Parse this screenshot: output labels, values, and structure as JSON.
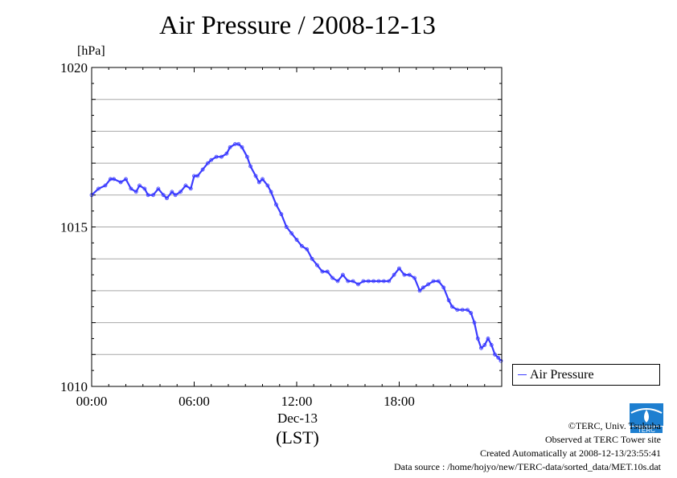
{
  "title": "Air Pressure / 2008-12-13",
  "unit_label": "[hPa]",
  "x_caption_date": "Dec-13",
  "x_caption_zone": "(LST)",
  "legend_label": "Air Pressure",
  "credits": {
    "copyright": "©TERC, Univ. Tsukuba",
    "site": "Observed at TERC Tower site",
    "created": "Created Automatically at 2008-12-13/23:55:41",
    "source": "Data source : /home/hojyo/new/TERC-data/sorted_data/MET.10s.dat"
  },
  "logo_text": "TERC",
  "colors": {
    "series": "#3b3bff",
    "grid": "#a8a8a8",
    "logo": "#1e7fd0"
  },
  "chart_data": {
    "type": "line",
    "title": "Air Pressure / 2008-12-13",
    "ylabel": "[hPa]",
    "xlabel": "Dec-13 (LST)",
    "xlim": [
      0,
      24
    ],
    "ylim": [
      1010,
      1020
    ],
    "xticks": [
      0,
      6,
      12,
      18
    ],
    "xticklabels": [
      "00:00",
      "06:00",
      "12:00",
      "18:00"
    ],
    "yticks": [
      1010,
      1015,
      1020
    ],
    "yticklabels": [
      "1010",
      "1015",
      "1020"
    ],
    "grid": true,
    "legend": "right",
    "series": [
      {
        "name": "Air Pressure",
        "x": [
          0,
          0.4,
          0.8,
          1.1,
          1.3,
          1.7,
          2.0,
          2.3,
          2.6,
          2.8,
          3.1,
          3.3,
          3.6,
          3.9,
          4.2,
          4.4,
          4.7,
          4.9,
          5.2,
          5.5,
          5.8,
          6.0,
          6.2,
          6.5,
          6.8,
          7.0,
          7.3,
          7.6,
          7.9,
          8.1,
          8.4,
          8.6,
          8.8,
          9.1,
          9.3,
          9.6,
          9.8,
          10.0,
          10.3,
          10.5,
          10.8,
          11.1,
          11.4,
          11.7,
          12.0,
          12.3,
          12.6,
          12.9,
          13.2,
          13.5,
          13.8,
          14.1,
          14.4,
          14.7,
          15.0,
          15.3,
          15.6,
          15.9,
          16.2,
          16.5,
          16.8,
          17.1,
          17.4,
          17.7,
          18.0,
          18.3,
          18.6,
          18.9,
          19.2,
          19.4,
          19.7,
          20.0,
          20.3,
          20.6,
          20.9,
          21.1,
          21.4,
          21.7,
          22.0,
          22.2,
          22.4,
          22.6,
          22.8,
          23.0,
          23.2,
          23.4,
          23.6,
          23.8,
          23.95
        ],
        "values": [
          1016.0,
          1016.2,
          1016.3,
          1016.5,
          1016.5,
          1016.4,
          1016.5,
          1016.2,
          1016.1,
          1016.3,
          1016.2,
          1016.0,
          1016.0,
          1016.2,
          1016.0,
          1015.9,
          1016.1,
          1016.0,
          1016.1,
          1016.3,
          1016.2,
          1016.6,
          1016.6,
          1016.8,
          1017.0,
          1017.1,
          1017.2,
          1017.2,
          1017.3,
          1017.5,
          1017.6,
          1017.6,
          1017.5,
          1017.2,
          1016.9,
          1016.6,
          1016.4,
          1016.5,
          1016.3,
          1016.1,
          1015.7,
          1015.4,
          1015.0,
          1014.8,
          1014.6,
          1014.4,
          1014.3,
          1014.0,
          1013.8,
          1013.6,
          1013.6,
          1013.4,
          1013.3,
          1013.5,
          1013.3,
          1013.3,
          1013.2,
          1013.3,
          1013.3,
          1013.3,
          1013.3,
          1013.3,
          1013.3,
          1013.5,
          1013.7,
          1013.5,
          1013.5,
          1013.4,
          1013.0,
          1013.1,
          1013.2,
          1013.3,
          1013.3,
          1013.1,
          1012.7,
          1012.5,
          1012.4,
          1012.4,
          1012.4,
          1012.3,
          1012.0,
          1011.5,
          1011.2,
          1011.3,
          1011.5,
          1011.3,
          1011.0,
          1010.9,
          1010.8
        ]
      }
    ]
  }
}
